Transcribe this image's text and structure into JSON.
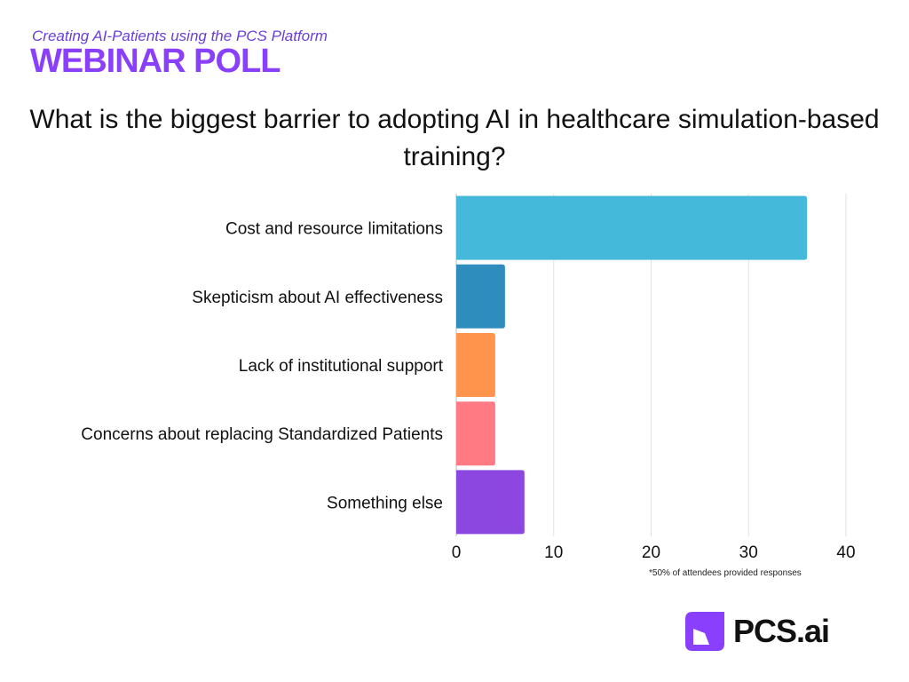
{
  "header": {
    "subtitle": "Creating AI-Patients using the PCS Platform",
    "headline": "WEBINAR POLL"
  },
  "chart_data": {
    "type": "bar",
    "orientation": "horizontal",
    "title": "What is the biggest barrier to adopting AI in healthcare simulation-based training?",
    "categories": [
      "Cost and resource limitations",
      "Skepticism about AI effectiveness",
      "Lack of institutional support",
      "Concerns about replacing Standardized Patients",
      "Something else"
    ],
    "values": [
      36,
      5,
      4,
      4,
      7
    ],
    "colors": [
      "#45b9d9",
      "#2e8dbd",
      "#ff944d",
      "#ff7a82",
      "#8b47e0"
    ],
    "xlim": [
      0,
      40
    ],
    "xticks": [
      0,
      10,
      20,
      30,
      40
    ],
    "grid": true,
    "xlabel": "",
    "ylabel": ""
  },
  "footnote": "*50% of attendees provided responses",
  "logo": {
    "text": "PCS.ai",
    "icon": "pcs-logo-icon",
    "mark_color": "#8a3ffc"
  }
}
